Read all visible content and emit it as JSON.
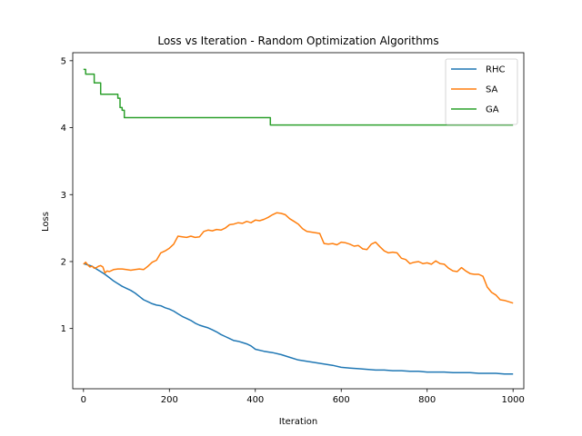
{
  "chart_data": {
    "type": "line",
    "title": "Loss vs Iteration - Random Optimization Algorithms",
    "xlabel": "Iteration",
    "ylabel": "Loss",
    "xlim": [
      -25,
      1025
    ],
    "ylim": [
      0.1,
      5.12
    ],
    "xticks": [
      0,
      200,
      400,
      600,
      800,
      1000
    ],
    "yticks": [
      1,
      2,
      3,
      4,
      5
    ],
    "grid": false,
    "legend_position": "top-right",
    "series": [
      {
        "name": "RHC",
        "color": "#1f77b4",
        "step": false,
        "x": [
          0,
          10,
          20,
          30,
          40,
          50,
          60,
          70,
          80,
          90,
          100,
          110,
          120,
          130,
          140,
          150,
          160,
          170,
          180,
          190,
          200,
          210,
          220,
          230,
          240,
          250,
          260,
          270,
          280,
          290,
          300,
          310,
          320,
          330,
          340,
          350,
          360,
          370,
          380,
          390,
          400,
          420,
          440,
          460,
          480,
          500,
          520,
          540,
          560,
          580,
          600,
          620,
          640,
          660,
          680,
          700,
          720,
          740,
          760,
          780,
          800,
          820,
          840,
          860,
          880,
          900,
          920,
          940,
          960,
          980,
          1000
        ],
        "y": [
          1.97,
          1.95,
          1.93,
          1.89,
          1.85,
          1.81,
          1.76,
          1.71,
          1.67,
          1.63,
          1.6,
          1.57,
          1.53,
          1.48,
          1.43,
          1.4,
          1.37,
          1.35,
          1.34,
          1.31,
          1.29,
          1.26,
          1.22,
          1.18,
          1.15,
          1.12,
          1.08,
          1.05,
          1.03,
          1.01,
          0.98,
          0.95,
          0.91,
          0.88,
          0.85,
          0.82,
          0.81,
          0.79,
          0.77,
          0.74,
          0.69,
          0.66,
          0.64,
          0.61,
          0.57,
          0.53,
          0.51,
          0.49,
          0.47,
          0.45,
          0.42,
          0.41,
          0.4,
          0.39,
          0.38,
          0.38,
          0.37,
          0.37,
          0.36,
          0.36,
          0.35,
          0.35,
          0.35,
          0.34,
          0.34,
          0.34,
          0.33,
          0.33,
          0.33,
          0.32,
          0.32
        ]
      },
      {
        "name": "SA",
        "color": "#ff7f0e",
        "step": false,
        "x": [
          0,
          5,
          10,
          15,
          20,
          25,
          30,
          35,
          40,
          45,
          50,
          55,
          60,
          70,
          80,
          90,
          100,
          110,
          120,
          130,
          140,
          150,
          160,
          170,
          180,
          190,
          200,
          210,
          220,
          230,
          240,
          250,
          260,
          270,
          280,
          290,
          300,
          310,
          320,
          330,
          340,
          350,
          360,
          370,
          380,
          390,
          400,
          410,
          420,
          430,
          440,
          450,
          460,
          470,
          480,
          490,
          500,
          510,
          520,
          530,
          540,
          550,
          560,
          570,
          580,
          590,
          600,
          610,
          620,
          630,
          640,
          650,
          660,
          670,
          680,
          690,
          700,
          710,
          720,
          730,
          740,
          750,
          760,
          770,
          780,
          790,
          800,
          810,
          820,
          830,
          840,
          850,
          860,
          870,
          880,
          890,
          900,
          910,
          920,
          930,
          940,
          950,
          960,
          970,
          980,
          990,
          1000
        ],
        "y": [
          1.96,
          1.99,
          1.95,
          1.92,
          1.93,
          1.9,
          1.91,
          1.93,
          1.94,
          1.92,
          1.83,
          1.86,
          1.85,
          1.88,
          1.89,
          1.89,
          1.88,
          1.87,
          1.88,
          1.89,
          1.88,
          1.93,
          1.99,
          2.02,
          2.13,
          2.16,
          2.2,
          2.26,
          2.38,
          2.37,
          2.36,
          2.38,
          2.36,
          2.37,
          2.45,
          2.47,
          2.46,
          2.48,
          2.47,
          2.5,
          2.55,
          2.56,
          2.58,
          2.57,
          2.6,
          2.58,
          2.62,
          2.61,
          2.63,
          2.66,
          2.7,
          2.73,
          2.72,
          2.7,
          2.64,
          2.6,
          2.56,
          2.49,
          2.45,
          2.44,
          2.43,
          2.42,
          2.27,
          2.26,
          2.27,
          2.25,
          2.29,
          2.28,
          2.26,
          2.23,
          2.24,
          2.19,
          2.18,
          2.26,
          2.29,
          2.22,
          2.16,
          2.13,
          2.14,
          2.13,
          2.05,
          2.03,
          1.97,
          1.99,
          2.0,
          1.97,
          1.98,
          1.96,
          2.01,
          1.97,
          1.96,
          1.9,
          1.86,
          1.85,
          1.91,
          1.86,
          1.82,
          1.81,
          1.81,
          1.78,
          1.62,
          1.54,
          1.5,
          1.43,
          1.42,
          1.4,
          1.38
        ]
      },
      {
        "name": "GA",
        "color": "#2ca02c",
        "step": true,
        "x": [
          0,
          5,
          20,
          25,
          40,
          80,
          85,
          90,
          95,
          100,
          430,
          435,
          1000
        ],
        "y": [
          4.87,
          4.8,
          4.8,
          4.67,
          4.5,
          4.44,
          4.3,
          4.26,
          4.15,
          4.15,
          4.15,
          4.04,
          4.04
        ]
      }
    ]
  }
}
